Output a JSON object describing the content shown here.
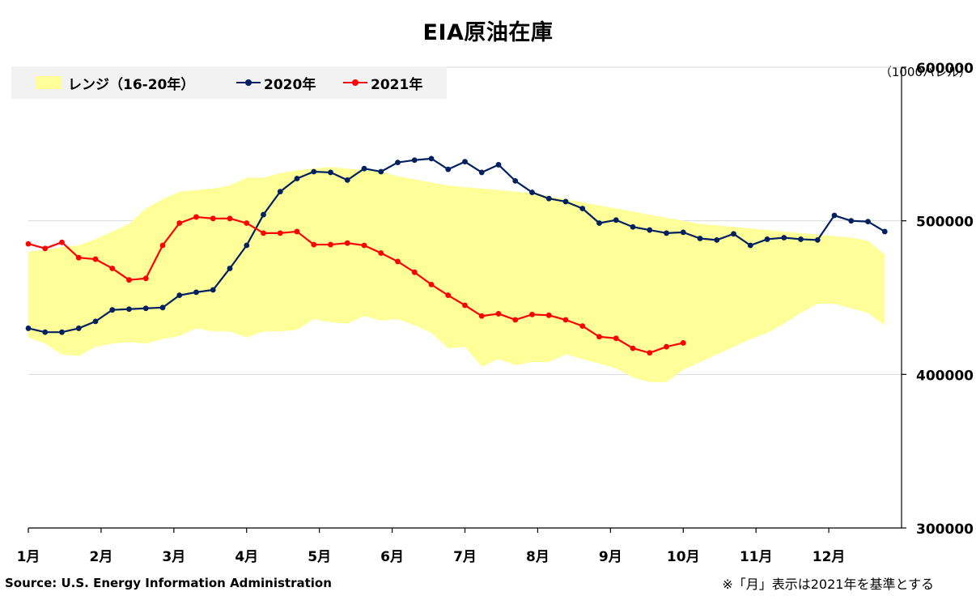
{
  "title": "EIA原油在庫",
  "unit_label": "（1000バレル）",
  "source": "Source: U.S. Energy Information Administration",
  "footnote": "※「月」表示は2021年を基準とする",
  "legend": {
    "range": "レンジ（16-20年）",
    "y2020": "2020年",
    "y2021": "2021年"
  },
  "colors": {
    "range": "#ffff99",
    "y2020": "#002060",
    "y2021": "#ff0000",
    "axis": "#000000",
    "grid": "#d9d9d9"
  },
  "chart_data": {
    "type": "line",
    "title": "EIA原油在庫",
    "ylim": [
      300000,
      600000
    ],
    "yticks": [
      300000,
      400000,
      500000,
      600000
    ],
    "ytick_labels": [
      "300000",
      "400000",
      "500000",
      "600000"
    ],
    "y_axis_side": "right",
    "grid": "horizontal",
    "legend_position": "top-left",
    "x_labels": [
      "1月",
      "2月",
      "3月",
      "4月",
      "5月",
      "6月",
      "7月",
      "8月",
      "9月",
      "10月",
      "11月",
      "12月"
    ],
    "x_weeks": 52,
    "series": [
      {
        "name": "レンジ（16-20年）",
        "kind": "band",
        "upper": [
          480000,
          481000,
          483000,
          484000,
          488000,
          493000,
          498000,
          508000,
          514000,
          519000,
          520000,
          521000,
          523000,
          528000,
          528000,
          531000,
          533000,
          534000,
          535000,
          534000,
          533000,
          532000,
          529000,
          527000,
          525000,
          523000,
          522000,
          521000,
          520000,
          519000,
          518000,
          516000,
          514000,
          512000,
          510000,
          508000,
          506000,
          504000,
          502000,
          500000,
          498000,
          497000,
          496000,
          495000,
          494000,
          493000,
          492000,
          491000,
          490000,
          489000,
          487000,
          478000
        ],
        "lower": [
          424000,
          420000,
          413000,
          412000,
          418000,
          420000,
          421000,
          420000,
          423000,
          425000,
          430000,
          428000,
          428000,
          424000,
          428000,
          428000,
          429000,
          436000,
          434000,
          433000,
          438000,
          435000,
          436000,
          432000,
          427000,
          417000,
          418000,
          405000,
          410000,
          406000,
          408000,
          408000,
          413000,
          410000,
          407000,
          404000,
          398000,
          395000,
          395000,
          403000,
          408000,
          413000,
          418000,
          423000,
          427000,
          433000,
          440000,
          446000,
          446000,
          443000,
          440000,
          432000
        ]
      },
      {
        "name": "2020年",
        "kind": "line",
        "values": [
          430000,
          427500,
          427500,
          430000,
          434500,
          442000,
          442500,
          443000,
          443500,
          451500,
          453500,
          455000,
          469000,
          484000,
          504000,
          519000,
          527500,
          532000,
          531500,
          526500,
          534000,
          532000,
          538000,
          539500,
          540500,
          533500,
          538500,
          531500,
          536500,
          526000,
          518500,
          514500,
          512500,
          508000,
          498500,
          500500,
          496000,
          494000,
          492000,
          492500,
          488500,
          487500,
          491500,
          484000,
          488000,
          489000,
          488000,
          487500,
          503500,
          500000,
          499500,
          493000
        ]
      },
      {
        "name": "2021年",
        "kind": "line",
        "values": [
          485000,
          482000,
          486000,
          476000,
          475000,
          469000,
          461500,
          462500,
          484000,
          498500,
          502500,
          501500,
          501500,
          498500,
          492000,
          492000,
          493000,
          484500,
          484500,
          485500,
          484000,
          479000,
          473500,
          466500,
          458500,
          451500,
          445000,
          438000,
          439500,
          435500,
          439000,
          438500,
          435500,
          431500,
          424500,
          423500,
          417000,
          414000,
          418000,
          420500
        ]
      }
    ]
  }
}
